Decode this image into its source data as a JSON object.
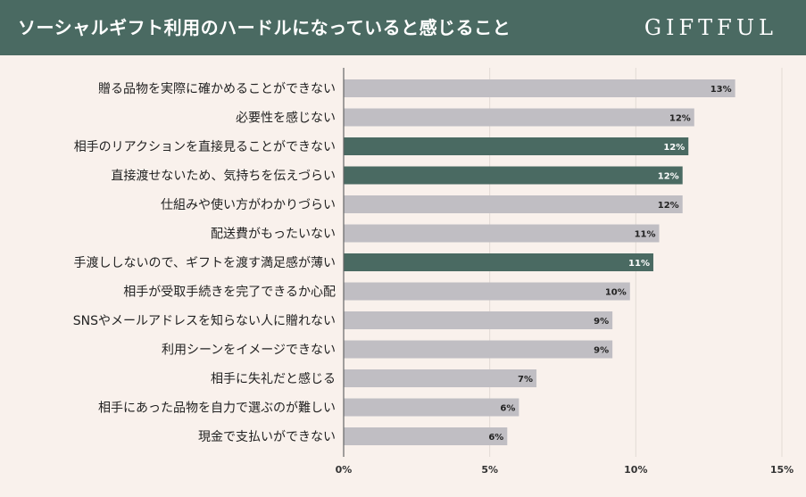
{
  "header": {
    "title": "ソーシャルギフト利用のハードルになっていると感じること",
    "brand": "GIFTFUL"
  },
  "colors": {
    "header_bg": "#4a6a62",
    "bar_default": "#c0bec3",
    "bar_highlight": "#4a6a62",
    "background": "#f9f1ec",
    "gridline": "#e2dad5",
    "axis": "#666666"
  },
  "chart_data": {
    "type": "bar",
    "orientation": "horizontal",
    "title": "ソーシャルギフト利用のハードルになっていると感じること",
    "xlabel": "",
    "ylabel": "",
    "xlim": [
      0,
      15
    ],
    "ticks": [
      0,
      5,
      10,
      15
    ],
    "tick_labels": [
      "0%",
      "5%",
      "10%",
      "15%"
    ],
    "categories": [
      "贈る品物を実際に確かめることができない",
      "必要性を感じない",
      "相手のリアクションを直接見ることができない",
      "直接渡せないため、気持ちを伝えづらい",
      "仕組みや使い方がわかりづらい",
      "配送費がもったいない",
      "手渡ししないので、ギフトを渡す満足感が薄い",
      "相手が受取手続きを完了できるか心配",
      "SNSやメールアドレスを知らない人に贈れない",
      "利用シーンをイメージできない",
      "相手に失礼だと感じる",
      "相手にあった品物を自力で選ぶのが難しい",
      "現金で支払いができない"
    ],
    "values": [
      13.4,
      12.0,
      11.8,
      11.6,
      11.6,
      10.8,
      10.6,
      9.8,
      9.2,
      9.2,
      6.6,
      6.0,
      5.6
    ],
    "value_labels": [
      "13%",
      "12%",
      "12%",
      "12%",
      "12%",
      "11%",
      "11%",
      "10%",
      "9%",
      "9%",
      "7%",
      "6%",
      "6%"
    ],
    "highlighted": [
      false,
      false,
      true,
      true,
      false,
      false,
      true,
      false,
      false,
      false,
      false,
      false,
      false
    ]
  }
}
